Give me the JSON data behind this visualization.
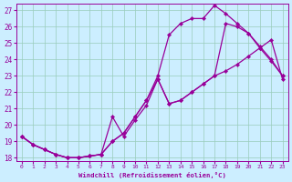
{
  "xlabel": "Windchill (Refroidissement éolien,°C)",
  "xlim": [
    -0.5,
    23.5
  ],
  "ylim": [
    17.8,
    27.4
  ],
  "yticks": [
    18,
    19,
    20,
    21,
    22,
    23,
    24,
    25,
    26,
    27
  ],
  "xticks": [
    0,
    1,
    2,
    3,
    4,
    5,
    6,
    7,
    8,
    9,
    10,
    11,
    12,
    13,
    14,
    15,
    16,
    17,
    18,
    19,
    20,
    21,
    22,
    23
  ],
  "background_color": "#cceeff",
  "line_color": "#990099",
  "grid_color": "#99ccbb",
  "curve1_x": [
    0,
    1,
    2,
    3,
    4,
    5,
    6,
    7,
    8,
    9,
    10,
    11,
    12,
    13,
    14,
    15,
    16,
    17,
    18,
    19,
    20,
    21,
    22,
    23
  ],
  "curve1_y": [
    19.3,
    18.8,
    18.5,
    18.2,
    18.0,
    18.0,
    18.1,
    18.2,
    19.0,
    19.5,
    20.5,
    21.5,
    23.0,
    25.5,
    26.2,
    26.5,
    26.5,
    27.3,
    26.8,
    26.2,
    25.6,
    24.8,
    24.0,
    23.0
  ],
  "curve2_x": [
    0,
    1,
    2,
    3,
    4,
    5,
    6,
    7,
    8,
    9,
    10,
    11,
    12,
    13,
    14,
    15,
    16,
    17,
    18,
    19,
    20,
    21,
    22,
    23
  ],
  "curve2_y": [
    19.3,
    18.8,
    18.5,
    18.2,
    18.0,
    18.0,
    18.1,
    18.2,
    20.5,
    19.3,
    20.3,
    21.2,
    22.8,
    21.3,
    21.5,
    22.0,
    22.5,
    23.0,
    26.2,
    26.0,
    25.6,
    24.7,
    23.9,
    23.0
  ],
  "curve3_x": [
    0,
    1,
    2,
    3,
    4,
    5,
    6,
    7,
    8,
    9,
    10,
    11,
    12,
    13,
    14,
    15,
    16,
    17,
    18,
    19,
    20,
    21,
    22,
    23
  ],
  "curve3_y": [
    19.3,
    18.8,
    18.5,
    18.2,
    18.0,
    18.0,
    18.1,
    18.2,
    19.0,
    19.5,
    20.5,
    21.5,
    22.8,
    21.3,
    21.5,
    22.0,
    22.5,
    23.0,
    23.3,
    23.7,
    24.2,
    24.7,
    25.2,
    22.8
  ]
}
